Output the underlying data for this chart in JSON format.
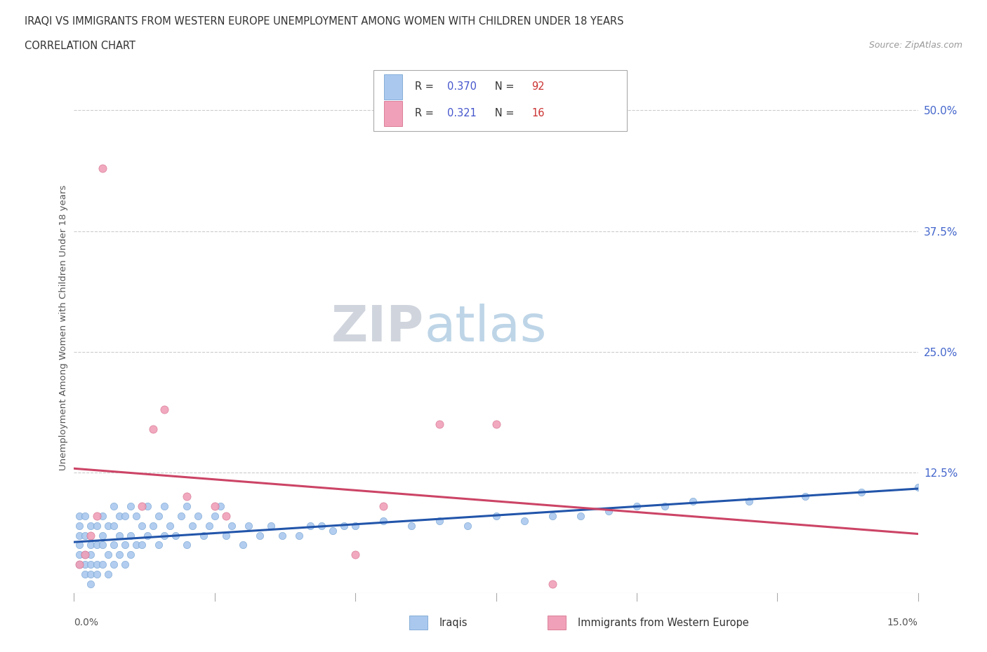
{
  "title_line1": "IRAQI VS IMMIGRANTS FROM WESTERN EUROPE UNEMPLOYMENT AMONG WOMEN WITH CHILDREN UNDER 18 YEARS",
  "title_line2": "CORRELATION CHART",
  "source": "Source: ZipAtlas.com",
  "ylabel": "Unemployment Among Women with Children Under 18 years",
  "ytick_labels": [
    "50.0%",
    "37.5%",
    "25.0%",
    "12.5%"
  ],
  "ytick_vals": [
    0.5,
    0.375,
    0.25,
    0.125
  ],
  "xlim": [
    0.0,
    0.15
  ],
  "ylim": [
    0.0,
    0.55
  ],
  "background_color": "#ffffff",
  "plot_bg_color": "#ffffff",
  "grid_color": "#cccccc",
  "iraqis": {
    "name": "Iraqis",
    "R": 0.37,
    "N": 92,
    "color": "#aac8ee",
    "edge_color": "#6699cc",
    "line_color": "#2255aa",
    "x": [
      0.001,
      0.001,
      0.001,
      0.001,
      0.001,
      0.001,
      0.002,
      0.002,
      0.002,
      0.002,
      0.002,
      0.003,
      0.003,
      0.003,
      0.003,
      0.003,
      0.003,
      0.004,
      0.004,
      0.004,
      0.004,
      0.005,
      0.005,
      0.005,
      0.005,
      0.006,
      0.006,
      0.006,
      0.007,
      0.007,
      0.007,
      0.007,
      0.008,
      0.008,
      0.008,
      0.009,
      0.009,
      0.009,
      0.01,
      0.01,
      0.01,
      0.011,
      0.011,
      0.012,
      0.012,
      0.013,
      0.013,
      0.014,
      0.015,
      0.015,
      0.016,
      0.016,
      0.017,
      0.018,
      0.019,
      0.02,
      0.02,
      0.021,
      0.022,
      0.023,
      0.024,
      0.025,
      0.026,
      0.027,
      0.028,
      0.03,
      0.031,
      0.033,
      0.035,
      0.037,
      0.04,
      0.042,
      0.044,
      0.046,
      0.048,
      0.05,
      0.055,
      0.06,
      0.065,
      0.07,
      0.075,
      0.08,
      0.085,
      0.09,
      0.095,
      0.1,
      0.105,
      0.11,
      0.12,
      0.13,
      0.14,
      0.15
    ],
    "y": [
      0.03,
      0.04,
      0.05,
      0.06,
      0.07,
      0.08,
      0.02,
      0.03,
      0.04,
      0.06,
      0.08,
      0.01,
      0.02,
      0.03,
      0.04,
      0.05,
      0.07,
      0.02,
      0.03,
      0.05,
      0.07,
      0.03,
      0.05,
      0.06,
      0.08,
      0.02,
      0.04,
      0.07,
      0.03,
      0.05,
      0.07,
      0.09,
      0.04,
      0.06,
      0.08,
      0.03,
      0.05,
      0.08,
      0.04,
      0.06,
      0.09,
      0.05,
      0.08,
      0.05,
      0.07,
      0.06,
      0.09,
      0.07,
      0.05,
      0.08,
      0.06,
      0.09,
      0.07,
      0.06,
      0.08,
      0.05,
      0.09,
      0.07,
      0.08,
      0.06,
      0.07,
      0.08,
      0.09,
      0.06,
      0.07,
      0.05,
      0.07,
      0.06,
      0.07,
      0.06,
      0.06,
      0.07,
      0.07,
      0.065,
      0.07,
      0.07,
      0.075,
      0.07,
      0.075,
      0.07,
      0.08,
      0.075,
      0.08,
      0.08,
      0.085,
      0.09,
      0.09,
      0.095,
      0.095,
      0.1,
      0.105,
      0.11
    ]
  },
  "western": {
    "name": "Immigrants from Western Europe",
    "R": 0.321,
    "N": 16,
    "color": "#f0a0b8",
    "edge_color": "#d06080",
    "line_color": "#cc4466",
    "x": [
      0.001,
      0.002,
      0.003,
      0.004,
      0.005,
      0.012,
      0.014,
      0.016,
      0.02,
      0.025,
      0.027,
      0.05,
      0.055,
      0.065,
      0.075,
      0.085
    ],
    "y": [
      0.03,
      0.04,
      0.06,
      0.08,
      0.44,
      0.09,
      0.17,
      0.19,
      0.1,
      0.09,
      0.08,
      0.04,
      0.09,
      0.175,
      0.175,
      0.01
    ]
  },
  "legend": {
    "iraqis_label": "R = 0.370   N = 92",
    "western_label": "R =  0.321   N = 16",
    "text_color": "#4455cc",
    "N_color": "#cc4444",
    "box_color_iraqis": "#aac8ee",
    "box_color_western": "#f0a0b8",
    "box_edge_iraqis": "#6699cc",
    "box_edge_western": "#d06080"
  },
  "bottom_legend_iraqis": "Iraqis",
  "bottom_legend_western": "Immigrants from Western Europe"
}
